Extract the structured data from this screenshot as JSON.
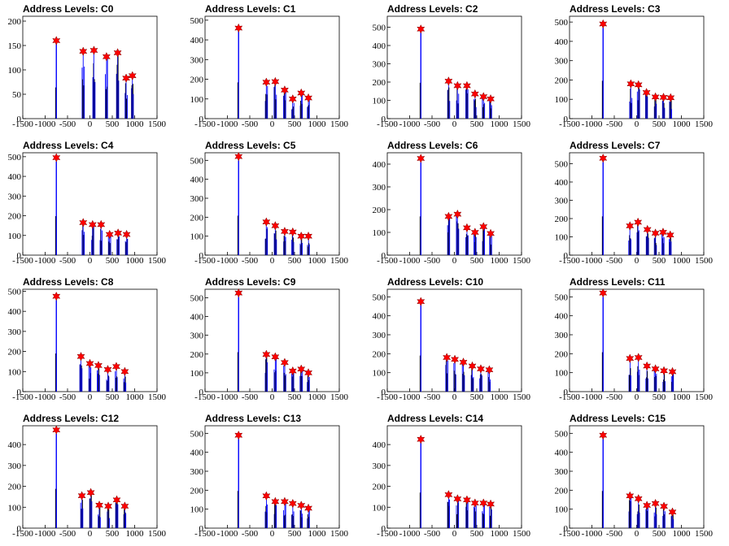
{
  "figure": {
    "colors": {
      "frame": "#000000",
      "histogram": "#0000ff",
      "marker": "#ff0000",
      "marker_edge": "#800000"
    }
  },
  "chart_data": [
    {
      "type": "histogram",
      "title": "Address Levels: C0",
      "xlim": [
        -1500,
        1500
      ],
      "ylim": [
        0,
        210
      ],
      "xticks": [
        "-1500",
        "-1000",
        "-500",
        "0",
        "500",
        "1000",
        "1500"
      ],
      "yticks": [
        0,
        50,
        100,
        150,
        200
      ],
      "peaks_x": [
        -750,
        -150,
        90,
        370,
        620,
        810,
        950
      ],
      "peaks_y": [
        160,
        138,
        140,
        127,
        135,
        83,
        88
      ]
    },
    {
      "type": "histogram",
      "title": "Address Levels: C1",
      "xlim": [
        -1500,
        1500
      ],
      "ylim": [
        0,
        520
      ],
      "xticks": [
        "-1500",
        "-1000",
        "-500",
        "0",
        "500",
        "1000",
        "1500"
      ],
      "yticks": [
        0,
        100,
        200,
        300,
        400,
        500
      ],
      "peaks_x": [
        -750,
        -130,
        70,
        280,
        460,
        650,
        810
      ],
      "peaks_y": [
        460,
        185,
        188,
        145,
        100,
        130,
        105
      ]
    },
    {
      "type": "histogram",
      "title": "Address Levels: C2",
      "xlim": [
        -1500,
        1500
      ],
      "ylim": [
        0,
        560
      ],
      "xticks": [
        "-1500",
        "-1000",
        "-500",
        "0",
        "500",
        "1000",
        "1500"
      ],
      "yticks": [
        0,
        100,
        200,
        300,
        400,
        500
      ],
      "peaks_x": [
        -750,
        -130,
        70,
        280,
        460,
        650,
        810
      ],
      "peaks_y": [
        490,
        205,
        180,
        180,
        135,
        120,
        108
      ]
    },
    {
      "type": "histogram",
      "title": "Address Levels: C3",
      "xlim": [
        -1500,
        1500
      ],
      "ylim": [
        0,
        530
      ],
      "xticks": [
        "-1500",
        "-1000",
        "-500",
        "0",
        "500",
        "1000",
        "1500"
      ],
      "yticks": [
        0,
        100,
        200,
        300,
        400,
        500
      ],
      "peaks_x": [
        -750,
        -130,
        40,
        220,
        420,
        600,
        760
      ],
      "peaks_y": [
        490,
        180,
        175,
        135,
        112,
        110,
        108
      ]
    },
    {
      "type": "histogram",
      "title": "Address Levels: C4",
      "xlim": [
        -1500,
        1500
      ],
      "ylim": [
        0,
        520
      ],
      "xticks": [
        "-1500",
        "-1000",
        "-500",
        "0",
        "500",
        "1000",
        "1500"
      ],
      "yticks": [
        0,
        100,
        200,
        300,
        400,
        500
      ],
      "peaks_x": [
        -750,
        -150,
        60,
        250,
        440,
        630,
        820
      ],
      "peaks_y": [
        495,
        165,
        155,
        155,
        105,
        112,
        105
      ]
    },
    {
      "type": "histogram",
      "title": "Address Levels: C5",
      "xlim": [
        -1500,
        1500
      ],
      "ylim": [
        0,
        540
      ],
      "xticks": [
        "-1500",
        "-1000",
        "-500",
        "0",
        "500",
        "1000",
        "1500"
      ],
      "yticks": [
        0,
        100,
        200,
        300,
        400,
        500
      ],
      "peaks_x": [
        -750,
        -130,
        70,
        280,
        460,
        650,
        810
      ],
      "peaks_y": [
        520,
        175,
        155,
        125,
        122,
        100,
        100
      ]
    },
    {
      "type": "histogram",
      "title": "Address Levels: C6",
      "xlim": [
        -1500,
        1500
      ],
      "ylim": [
        0,
        450
      ],
      "xticks": [
        "-1500",
        "-1000",
        "-500",
        "0",
        "500",
        "1000",
        "1500"
      ],
      "yticks": [
        0,
        100,
        200,
        300,
        400
      ],
      "peaks_x": [
        -750,
        -130,
        70,
        280,
        460,
        650,
        810
      ],
      "peaks_y": [
        425,
        170,
        180,
        120,
        100,
        125,
        95
      ]
    },
    {
      "type": "histogram",
      "title": "Address Levels: C7",
      "xlim": [
        -1500,
        1500
      ],
      "ylim": [
        0,
        560
      ],
      "xticks": [
        "-1500",
        "-1000",
        "-500",
        "0",
        "500",
        "1000",
        "1500"
      ],
      "yticks": [
        0,
        100,
        200,
        300,
        400,
        500
      ],
      "peaks_x": [
        -750,
        -150,
        30,
        240,
        420,
        590,
        750
      ],
      "peaks_y": [
        530,
        160,
        180,
        140,
        120,
        125,
        110
      ]
    },
    {
      "type": "histogram",
      "title": "Address Levels: C8",
      "xlim": [
        -1500,
        1500
      ],
      "ylim": [
        0,
        510
      ],
      "xticks": [
        "-1500",
        "-1000",
        "-500",
        "0",
        "500",
        "1000",
        "1500"
      ],
      "yticks": [
        0,
        100,
        200,
        300,
        400,
        500
      ],
      "peaks_x": [
        -750,
        -200,
        0,
        190,
        400,
        590,
        780
      ],
      "peaks_y": [
        475,
        175,
        140,
        130,
        110,
        125,
        100
      ]
    },
    {
      "type": "histogram",
      "title": "Address Levels: C9",
      "xlim": [
        -1500,
        1500
      ],
      "ylim": [
        0,
        545
      ],
      "xticks": [
        "-1500",
        "-1000",
        "-500",
        "0",
        "500",
        "1000",
        "1500"
      ],
      "yticks": [
        0,
        100,
        200,
        300,
        400,
        500
      ],
      "peaks_x": [
        -750,
        -130,
        70,
        280,
        460,
        650,
        810
      ],
      "peaks_y": [
        525,
        198,
        185,
        155,
        110,
        120,
        100
      ]
    },
    {
      "type": "histogram",
      "title": "Address Levels: C10",
      "xlim": [
        -1500,
        1500
      ],
      "ylim": [
        0,
        540
      ],
      "xticks": [
        "-1500",
        "-1000",
        "-500",
        "0",
        "500",
        "1000",
        "1500"
      ],
      "yticks": [
        0,
        100,
        200,
        300,
        400,
        500
      ],
      "peaks_x": [
        -750,
        -170,
        10,
        200,
        400,
        590,
        780
      ],
      "peaks_y": [
        475,
        180,
        170,
        155,
        135,
        120,
        115
      ]
    },
    {
      "type": "histogram",
      "title": "Address Levels: C11",
      "xlim": [
        -1500,
        1500
      ],
      "ylim": [
        0,
        540
      ],
      "xticks": [
        "-1500",
        "-1000",
        "-500",
        "0",
        "500",
        "1000",
        "1500"
      ],
      "yticks": [
        0,
        100,
        200,
        300,
        400,
        500
      ],
      "peaks_x": [
        -750,
        -150,
        40,
        230,
        420,
        610,
        800
      ],
      "peaks_y": [
        520,
        175,
        180,
        135,
        120,
        110,
        105
      ]
    },
    {
      "type": "histogram",
      "title": "Address Levels: C12",
      "xlim": [
        -1500,
        1500
      ],
      "ylim": [
        0,
        490
      ],
      "xticks": [
        "-1500",
        "-1000",
        "-500",
        "0",
        "500",
        "1000",
        "1500"
      ],
      "yticks": [
        0,
        100,
        200,
        300,
        400
      ],
      "peaks_x": [
        -750,
        -180,
        20,
        210,
        410,
        600,
        780
      ],
      "peaks_y": [
        470,
        155,
        170,
        110,
        105,
        135,
        105
      ]
    },
    {
      "type": "histogram",
      "title": "Address Levels: C13",
      "xlim": [
        -1500,
        1500
      ],
      "ylim": [
        0,
        540
      ],
      "xticks": [
        "-1500",
        "-1000",
        "-500",
        "0",
        "500",
        "1000",
        "1500"
      ],
      "yticks": [
        0,
        100,
        200,
        300,
        400,
        500
      ],
      "peaks_x": [
        -750,
        -130,
        70,
        280,
        460,
        650,
        810
      ],
      "peaks_y": [
        490,
        170,
        140,
        140,
        130,
        120,
        105
      ]
    },
    {
      "type": "histogram",
      "title": "Address Levels: C14",
      "xlim": [
        -1500,
        1500
      ],
      "ylim": [
        0,
        490
      ],
      "xticks": [
        "-1500",
        "-1000",
        "-500",
        "0",
        "500",
        "1000",
        "1500"
      ],
      "yticks": [
        0,
        100,
        200,
        300,
        400
      ],
      "peaks_x": [
        -750,
        -130,
        70,
        280,
        460,
        650,
        810
      ],
      "peaks_y": [
        425,
        160,
        140,
        135,
        120,
        120,
        115
      ]
    },
    {
      "type": "histogram",
      "title": "Address Levels: C15",
      "xlim": [
        -1500,
        1500
      ],
      "ylim": [
        0,
        540
      ],
      "xticks": [
        "-1500",
        "-1000",
        "-500",
        "0",
        "500",
        "1000",
        "1500"
      ],
      "yticks": [
        0,
        100,
        200,
        300,
        400,
        500
      ],
      "peaks_x": [
        -750,
        -150,
        40,
        230,
        420,
        610,
        800
      ],
      "peaks_y": [
        490,
        170,
        155,
        120,
        130,
        115,
        85
      ]
    }
  ]
}
